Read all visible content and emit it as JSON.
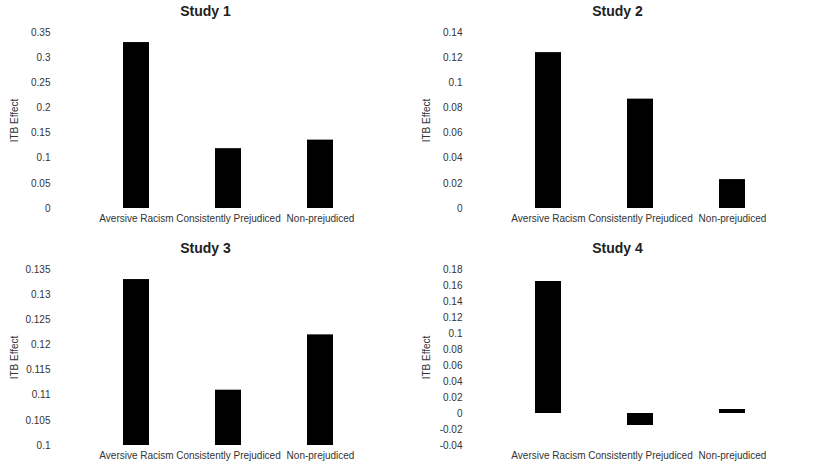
{
  "chart_data": [
    {
      "type": "bar",
      "title": "Study 1",
      "ylabel": "ITB Effect",
      "categories": [
        "Aversive Racism",
        "Consistently Prejudiced",
        "Non-prejudiced"
      ],
      "values": [
        0.33,
        0.119,
        0.136
      ],
      "color": "#000000",
      "ylim": [
        0,
        0.35
      ],
      "yticks": [
        0,
        0.05,
        0.1,
        0.15,
        0.2,
        0.25,
        0.3,
        0.35
      ],
      "grid": false
    },
    {
      "type": "bar",
      "title": "Study 2",
      "ylabel": "ITB Effect",
      "categories": [
        "Aversive Racism",
        "Consistently Prejudiced",
        "Non-prejudiced"
      ],
      "values": [
        0.124,
        0.087,
        0.023
      ],
      "color": "#000000",
      "ylim": [
        0,
        0.14
      ],
      "yticks": [
        0,
        0.02,
        0.04,
        0.06,
        0.08,
        0.1,
        0.12,
        0.14
      ],
      "grid": false
    },
    {
      "type": "bar",
      "title": "Study 3",
      "ylabel": "ITB Effect",
      "categories": [
        "Aversive Racism",
        "Consistently Prejudiced",
        "Non-prejudiced"
      ],
      "values": [
        0.133,
        0.111,
        0.122
      ],
      "color": "#000000",
      "ylim": [
        0.1,
        0.135
      ],
      "yticks": [
        0.1,
        0.105,
        0.11,
        0.115,
        0.12,
        0.125,
        0.13,
        0.135
      ],
      "grid": false
    },
    {
      "type": "bar",
      "title": "Study 4",
      "ylabel": "ITB Effect",
      "categories": [
        "Aversive Racism",
        "Consistently Prejudiced",
        "Non-prejudiced"
      ],
      "values": [
        0.165,
        -0.015,
        0.005
      ],
      "color": "#000000",
      "ylim": [
        -0.04,
        0.18
      ],
      "yticks": [
        -0.04,
        -0.02,
        0,
        0.02,
        0.04,
        0.06,
        0.08,
        0.1,
        0.12,
        0.14,
        0.16,
        0.18
      ],
      "grid": false
    }
  ]
}
